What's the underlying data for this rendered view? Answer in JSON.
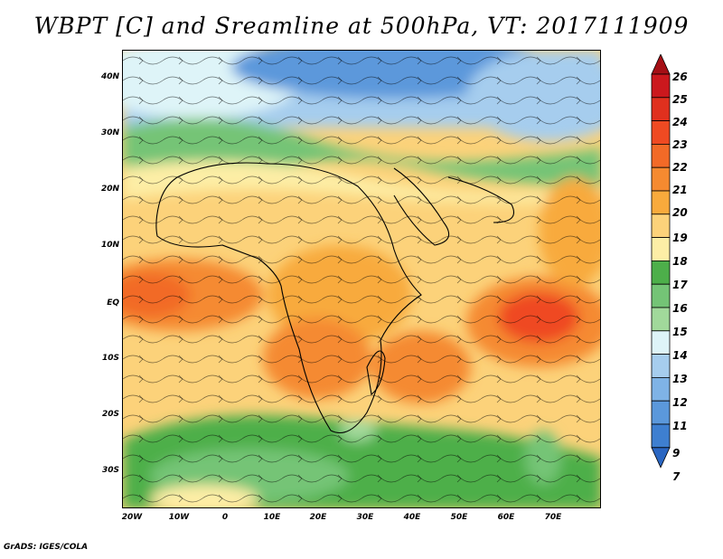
{
  "title": "WBPT [C] and Sreamline at 500hPa, VT: 2017111909",
  "footer": "GrADS: IGES/COLA",
  "map": {
    "lat_labels": [
      "40N",
      "30N",
      "20N",
      "10N",
      "EQ",
      "10S",
      "20S",
      "30S"
    ],
    "lon_labels": [
      "20W",
      "10W",
      "0",
      "10E",
      "20E",
      "30E",
      "40E",
      "50E",
      "60E",
      "70E"
    ],
    "variable": "WBPT",
    "unit": "C",
    "level": "500hPa",
    "valid_time": "2017111909"
  },
  "colorbar": {
    "labels": [
      "26",
      "25",
      "24",
      "23",
      "22",
      "21",
      "20",
      "19",
      "18",
      "17",
      "16",
      "15",
      "14",
      "13",
      "12",
      "11",
      "9",
      "7"
    ],
    "colors": [
      "#a50f15",
      "#cb181d",
      "#e0301e",
      "#ef4a22",
      "#f26a27",
      "#f58a30",
      "#f8aa3c",
      "#fcd27a",
      "#fdeea6",
      "#4daf4a",
      "#74c476",
      "#a1d99b",
      "#def4f8",
      "#a6cdee",
      "#7fb3e6",
      "#5b98db",
      "#3e7fd0",
      "#2a66c2"
    ]
  }
}
